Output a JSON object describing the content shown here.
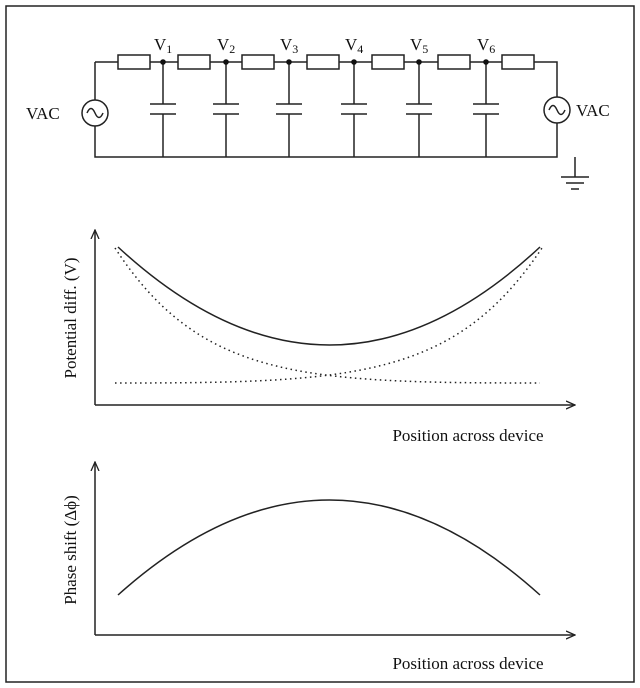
{
  "circuit": {
    "nodes": [
      {
        "base": "V",
        "sub": "1"
      },
      {
        "base": "V",
        "sub": "2"
      },
      {
        "base": "V",
        "sub": "3"
      },
      {
        "base": "V",
        "sub": "4"
      },
      {
        "base": "V",
        "sub": "5"
      },
      {
        "base": "V",
        "sub": "6"
      }
    ],
    "sources": [
      "VAC",
      "VAC"
    ]
  },
  "plots": [
    {
      "y_label": "Potential diff. (V)",
      "x_label": "Position across device"
    },
    {
      "y_label": "Phase shift (Δϕ)",
      "x_label": "Position across device"
    }
  ]
}
